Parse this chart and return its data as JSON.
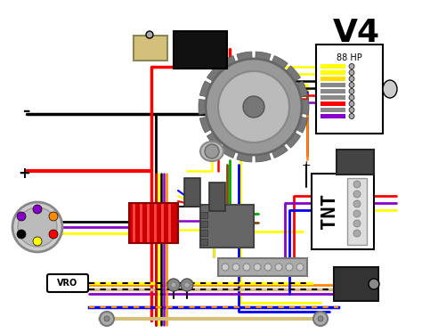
{
  "title": "V4",
  "subtitle": "88 HP",
  "bg_color": "#ffffff",
  "title_fontsize": 28,
  "figsize": [
    4.74,
    3.74
  ],
  "dpi": 100,
  "wire_colors": {
    "red": "#ff0000",
    "black": "#000000",
    "yellow": "#ffff00",
    "blue": "#0000ff",
    "purple": "#8800cc",
    "orange": "#ff8800",
    "green": "#00aa00",
    "brown": "#8B4513",
    "tan": "#d2b48c",
    "white": "#ffffff",
    "gray": "#888888",
    "darkgray": "#444444",
    "pink": "#ff88aa",
    "teal": "#008888",
    "lime": "#88ff00"
  },
  "labels": {
    "vro": "VRO",
    "minus": "–",
    "plus": "+",
    "tnt": "TNT",
    "hp88": "88 HP"
  }
}
